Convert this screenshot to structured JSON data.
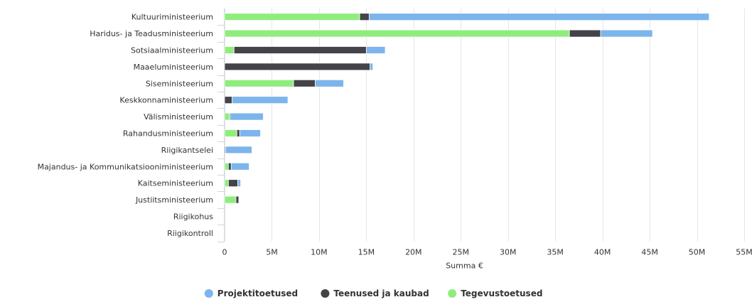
{
  "chart_data": {
    "type": "bar",
    "orientation": "horizontal",
    "stacked": true,
    "categories": [
      "Kultuuriministeerium",
      "Haridus- ja Teadusministeerium",
      "Sotsiaalministeerium",
      "Maaeluministeerium",
      "Siseministeerium",
      "Keskkonnaministeerium",
      "Välisministeerium",
      "Rahandusministeerium",
      "Riigikantselei",
      "Majandus- ja Kommunikatsiooniministeerium",
      "Kaitseministeerium",
      "Justiitsministeerium",
      "Riigikohus",
      "Riigikontroll"
    ],
    "series": [
      {
        "name": "Tegevustoetused",
        "color": "#90ed7d",
        "values": [
          14.3,
          36.5,
          1.0,
          0,
          7.3,
          0,
          0.5,
          1.3,
          0,
          0.4,
          0.4,
          1.2,
          0,
          0
        ]
      },
      {
        "name": "Teenused ja kaubad",
        "color": "#434348",
        "values": [
          1.0,
          3.3,
          14.0,
          15.4,
          2.3,
          0.8,
          0.1,
          0.3,
          0.1,
          0.3,
          1.0,
          0.3,
          0,
          0
        ]
      },
      {
        "name": "Projektitoetused",
        "color": "#7cb5ec",
        "values": [
          36.0,
          5.5,
          2.0,
          0.3,
          3.0,
          5.9,
          3.5,
          2.2,
          2.8,
          1.9,
          0.3,
          0,
          0,
          0
        ]
      }
    ],
    "legend_order": [
      "Projektitoetused",
      "Teenused ja kaubad",
      "Tegevustoetused"
    ],
    "x_ticks": [
      0,
      5,
      10,
      15,
      20,
      25,
      30,
      35,
      40,
      45,
      50,
      55
    ],
    "x_tick_labels": [
      "0",
      "5M",
      "10M",
      "15M",
      "20M",
      "25M",
      "30M",
      "35M",
      "40M",
      "45M",
      "50M",
      "55M"
    ],
    "xlim": [
      0,
      55
    ],
    "xlabel": "Summa €",
    "ylabel": "",
    "title": "",
    "grid": true,
    "legend_position": "bottom-center"
  }
}
